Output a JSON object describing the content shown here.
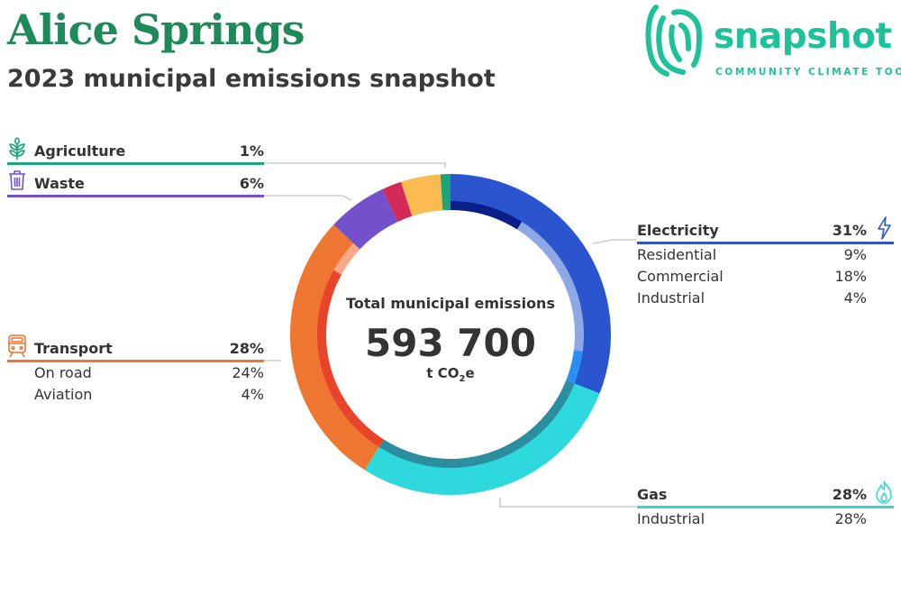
{
  "header": {
    "title": "Alice Springs",
    "subtitle": "2023 municipal emissions snapshot"
  },
  "logo": {
    "wordmark": "snapshot",
    "tagline": "COMMUNITY CLIMATE TOOL",
    "color": "#1ec29a"
  },
  "center": {
    "label": "Total municipal emissions",
    "value": "593 700",
    "unit_prefix": "t CO",
    "unit_sub": "2",
    "unit_suffix": "e"
  },
  "chart_data": {
    "type": "pie",
    "title": "2023 municipal emissions snapshot",
    "total": 593700,
    "unit": "t CO2e",
    "categories": [
      {
        "name": "Electricity",
        "percent": "31%",
        "value": 31,
        "color": "#2a55cf",
        "icon": "lightning-bolt-icon",
        "subsectors": [
          {
            "name": "Residential",
            "percent": "9%",
            "value": 9,
            "color": "#0b1f8a"
          },
          {
            "name": "Commercial",
            "percent": "18%",
            "value": 18,
            "color": "#8ea8e6"
          },
          {
            "name": "Industrial",
            "percent": "4%",
            "value": 4,
            "color": "#2a8ff5"
          }
        ]
      },
      {
        "name": "Gas",
        "percent": "28%",
        "value": 28,
        "color": "#2ed9de",
        "icon": "flame-icon",
        "subsectors": [
          {
            "name": "Industrial",
            "percent": "28%",
            "value": 28,
            "color": "#2a8e9e"
          }
        ]
      },
      {
        "name": "Transport",
        "percent": "28%",
        "value": 28,
        "color": "#ef7630",
        "icon": "train-icon",
        "subsectors": [
          {
            "name": "On road",
            "percent": "24%",
            "value": 24,
            "color": "#e8432b"
          },
          {
            "name": "Aviation",
            "percent": "4%",
            "value": 4,
            "color": "#f8a98a"
          }
        ]
      },
      {
        "name": "Waste",
        "percent": "6%",
        "value": 6,
        "color": "#7350cc",
        "icon": "trash-bin-icon",
        "subsectors": []
      },
      {
        "name": "Agriculture",
        "percent": "1%",
        "value": 1,
        "color": "#1aa678",
        "icon": "plant-icon",
        "subsectors": []
      }
    ],
    "unlabeled_segments": [
      {
        "value": 2,
        "color": "#d42a5a"
      },
      {
        "value": 4,
        "color": "#fbbb50"
      }
    ]
  }
}
